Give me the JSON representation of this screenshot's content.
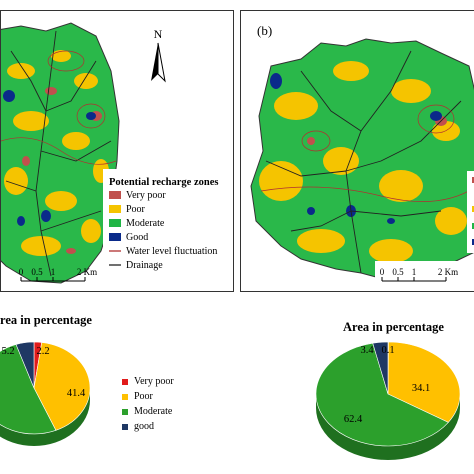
{
  "panel_a": {
    "north": "N",
    "legend_title": "Potential recharge zones",
    "legend_items": [
      {
        "label": "Very poor",
        "color": "#c0504d",
        "kind": "box"
      },
      {
        "label": "Poor",
        "color": "#f5c400",
        "kind": "box"
      },
      {
        "label": "Moderate",
        "color": "#1fb545",
        "kind": "box"
      },
      {
        "label": "Good",
        "color": "#0a2a8a",
        "kind": "box"
      },
      {
        "label": "Water level fluctuation",
        "color": "#b03030",
        "kind": "line"
      },
      {
        "label": "Drainage",
        "color": "#222222",
        "kind": "line"
      }
    ],
    "scale": {
      "t0": "0",
      "t1": "0.5",
      "t2": "1",
      "t3": "2 Km"
    }
  },
  "panel_b": {
    "label": "(b)",
    "scale": {
      "t0": "0",
      "t1": "0.5",
      "t2": "1",
      "t3": "2 Km"
    }
  },
  "pie1": {
    "title": "rea in percentage",
    "labels": [
      "5.2",
      "2.2",
      "41.4"
    ],
    "legend": [
      {
        "label": "Very poor",
        "color": "#e11b1b"
      },
      {
        "label": "Poor",
        "color": "#ffc000"
      },
      {
        "label": "Moderate",
        "color": "#2ca02c"
      },
      {
        "label": "good",
        "color": "#1f3864"
      }
    ]
  },
  "pie2": {
    "title": "Area in percentage",
    "labels": [
      "3.4",
      "0.1",
      "34.1",
      "62.4"
    ]
  },
  "chart_data": [
    {
      "type": "pie",
      "title": "rea in percentage",
      "categories": [
        "Very poor",
        "Poor",
        "Moderate",
        "good"
      ],
      "values": [
        2.2,
        41.4,
        51.2,
        5.2
      ]
    },
    {
      "type": "pie",
      "title": "Area in percentage",
      "categories": [
        "Very poor",
        "Poor",
        "Moderate",
        "good"
      ],
      "values": [
        0.1,
        34.1,
        62.4,
        3.4
      ]
    }
  ]
}
